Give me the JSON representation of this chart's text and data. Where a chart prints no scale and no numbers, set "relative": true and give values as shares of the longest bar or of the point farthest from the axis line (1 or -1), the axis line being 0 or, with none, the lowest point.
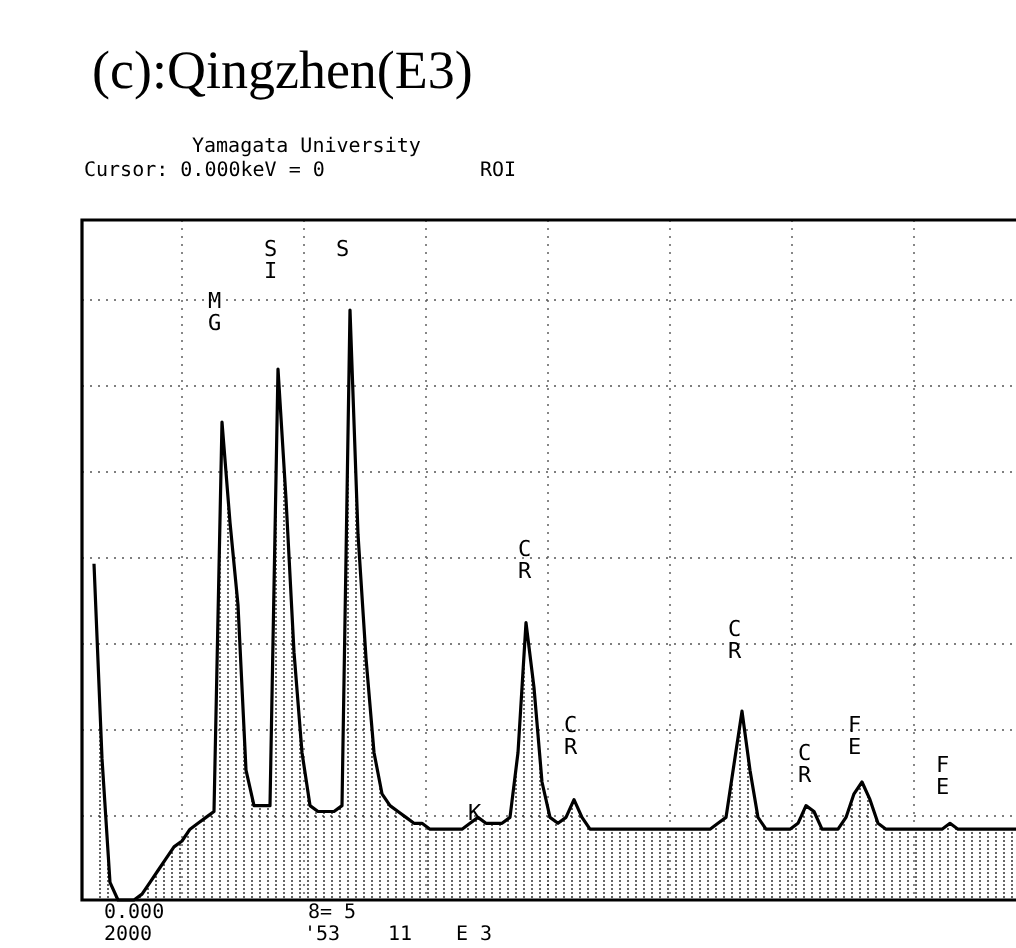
{
  "chart_data": {
    "type": "area",
    "title": "(c):Qingzhen(E3)",
    "relative": true,
    "grid": true,
    "color": "#000000",
    "categories": [
      null,
      null,
      null,
      null,
      null,
      null,
      null,
      null,
      null,
      null,
      null,
      null,
      null,
      null,
      null,
      null,
      null,
      null,
      null,
      null,
      null,
      null,
      null,
      null,
      null,
      null,
      null,
      null,
      null,
      null,
      null,
      null,
      null,
      null,
      null,
      null,
      null,
      null,
      null,
      null,
      null,
      null,
      null,
      null,
      null,
      null,
      null,
      null,
      null,
      null,
      null,
      null,
      null,
      null,
      null,
      null,
      null,
      null,
      null,
      null,
      null,
      null,
      null,
      null,
      null,
      null,
      null,
      null,
      null,
      null,
      null,
      null,
      null,
      null,
      null,
      null,
      null,
      null,
      null,
      null,
      null,
      null,
      null,
      null,
      null,
      null,
      null,
      null,
      null,
      null,
      null,
      null,
      null,
      null,
      null,
      null,
      null,
      null,
      null,
      null,
      null,
      null,
      null,
      null,
      null,
      null,
      null,
      null,
      null,
      null,
      null,
      null,
      null,
      null,
      null,
      null,
      null,
      null
    ],
    "values": [
      0.57,
      0.24,
      0.03,
      0,
      0,
      0,
      0.01,
      0.03,
      0.05,
      0.07,
      0.09,
      0.1,
      0.12,
      0.13,
      0.14,
      0.15,
      0.81,
      0.64,
      0.5,
      0.22,
      0.16,
      0.16,
      0.16,
      0.9,
      0.68,
      0.42,
      0.25,
      0.16,
      0.15,
      0.15,
      0.15,
      0.16,
      1.0,
      0.62,
      0.41,
      0.25,
      0.18,
      0.16,
      0.15,
      0.14,
      0.13,
      0.13,
      0.12,
      0.12,
      0.12,
      0.12,
      0.12,
      0.13,
      0.14,
      0.13,
      0.13,
      0.13,
      0.14,
      0.25,
      0.47,
      0.36,
      0.2,
      0.14,
      0.13,
      0.14,
      0.17,
      0.14,
      0.12,
      0.12,
      0.12,
      0.12,
      0.12,
      0.12,
      0.12,
      0.12,
      0.12,
      0.12,
      0.12,
      0.12,
      0.12,
      0.12,
      0.12,
      0.12,
      0.13,
      0.14,
      0.23,
      0.32,
      0.22,
      0.14,
      0.12,
      0.12,
      0.12,
      0.12,
      0.13,
      0.16,
      0.15,
      0.12,
      0.12,
      0.12,
      0.14,
      0.18,
      0.2,
      0.17,
      0.13,
      0.12,
      0.12,
      0.12,
      0.12,
      0.12,
      0.12,
      0.12,
      0.12,
      0.13,
      0.12,
      0.12,
      0.12,
      0.12,
      0.12,
      0.12,
      0.12,
      0.12,
      0.12,
      0.12
    ],
    "annotations": [
      "Yamagata University",
      "Cursor: 0.000keV = 0",
      "ROI",
      "MG",
      "SI",
      "S",
      "K",
      "CR",
      "CR",
      "CR",
      "CR",
      "FE",
      "FE",
      "0.000",
      "2000",
      "8= 5",
      "'53",
      "11",
      "E 3"
    ]
  }
}
